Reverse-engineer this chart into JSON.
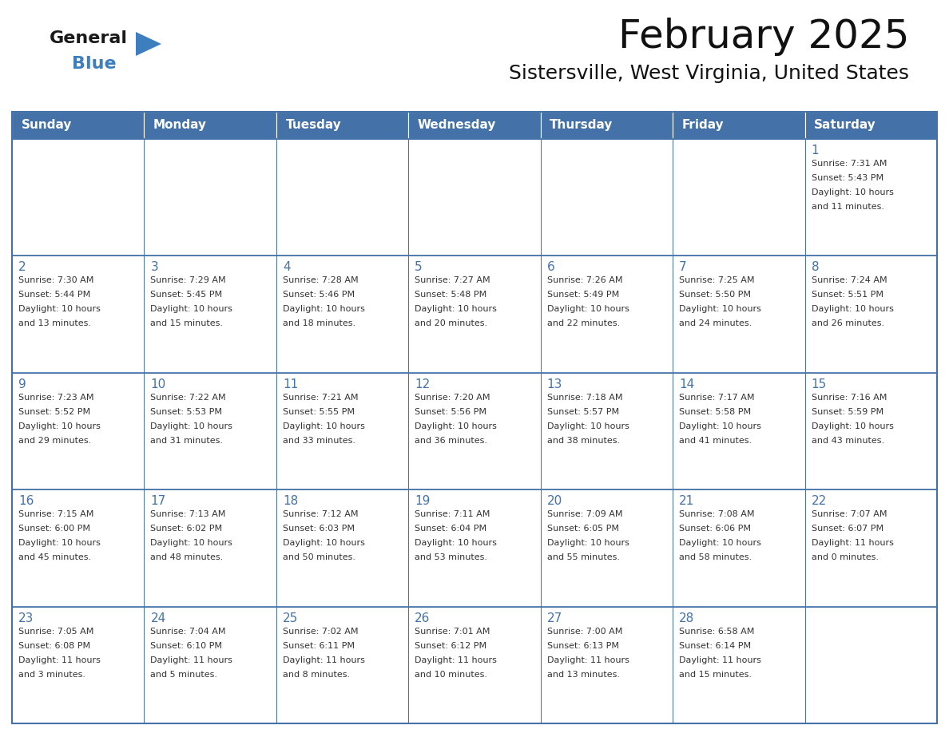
{
  "title": "February 2025",
  "subtitle": "Sistersville, West Virginia, United States",
  "header_color": "#4472a8",
  "header_text_color": "#ffffff",
  "border_color": "#4472a8",
  "text_color": "#333333",
  "day_number_color": "#4472a8",
  "days_of_week": [
    "Sunday",
    "Monday",
    "Tuesday",
    "Wednesday",
    "Thursday",
    "Friday",
    "Saturday"
  ],
  "weeks": [
    [
      {
        "day": "",
        "info": ""
      },
      {
        "day": "",
        "info": ""
      },
      {
        "day": "",
        "info": ""
      },
      {
        "day": "",
        "info": ""
      },
      {
        "day": "",
        "info": ""
      },
      {
        "day": "",
        "info": ""
      },
      {
        "day": "1",
        "info": "Sunrise: 7:31 AM\nSunset: 5:43 PM\nDaylight: 10 hours\nand 11 minutes."
      }
    ],
    [
      {
        "day": "2",
        "info": "Sunrise: 7:30 AM\nSunset: 5:44 PM\nDaylight: 10 hours\nand 13 minutes."
      },
      {
        "day": "3",
        "info": "Sunrise: 7:29 AM\nSunset: 5:45 PM\nDaylight: 10 hours\nand 15 minutes."
      },
      {
        "day": "4",
        "info": "Sunrise: 7:28 AM\nSunset: 5:46 PM\nDaylight: 10 hours\nand 18 minutes."
      },
      {
        "day": "5",
        "info": "Sunrise: 7:27 AM\nSunset: 5:48 PM\nDaylight: 10 hours\nand 20 minutes."
      },
      {
        "day": "6",
        "info": "Sunrise: 7:26 AM\nSunset: 5:49 PM\nDaylight: 10 hours\nand 22 minutes."
      },
      {
        "day": "7",
        "info": "Sunrise: 7:25 AM\nSunset: 5:50 PM\nDaylight: 10 hours\nand 24 minutes."
      },
      {
        "day": "8",
        "info": "Sunrise: 7:24 AM\nSunset: 5:51 PM\nDaylight: 10 hours\nand 26 minutes."
      }
    ],
    [
      {
        "day": "9",
        "info": "Sunrise: 7:23 AM\nSunset: 5:52 PM\nDaylight: 10 hours\nand 29 minutes."
      },
      {
        "day": "10",
        "info": "Sunrise: 7:22 AM\nSunset: 5:53 PM\nDaylight: 10 hours\nand 31 minutes."
      },
      {
        "day": "11",
        "info": "Sunrise: 7:21 AM\nSunset: 5:55 PM\nDaylight: 10 hours\nand 33 minutes."
      },
      {
        "day": "12",
        "info": "Sunrise: 7:20 AM\nSunset: 5:56 PM\nDaylight: 10 hours\nand 36 minutes."
      },
      {
        "day": "13",
        "info": "Sunrise: 7:18 AM\nSunset: 5:57 PM\nDaylight: 10 hours\nand 38 minutes."
      },
      {
        "day": "14",
        "info": "Sunrise: 7:17 AM\nSunset: 5:58 PM\nDaylight: 10 hours\nand 41 minutes."
      },
      {
        "day": "15",
        "info": "Sunrise: 7:16 AM\nSunset: 5:59 PM\nDaylight: 10 hours\nand 43 minutes."
      }
    ],
    [
      {
        "day": "16",
        "info": "Sunrise: 7:15 AM\nSunset: 6:00 PM\nDaylight: 10 hours\nand 45 minutes."
      },
      {
        "day": "17",
        "info": "Sunrise: 7:13 AM\nSunset: 6:02 PM\nDaylight: 10 hours\nand 48 minutes."
      },
      {
        "day": "18",
        "info": "Sunrise: 7:12 AM\nSunset: 6:03 PM\nDaylight: 10 hours\nand 50 minutes."
      },
      {
        "day": "19",
        "info": "Sunrise: 7:11 AM\nSunset: 6:04 PM\nDaylight: 10 hours\nand 53 minutes."
      },
      {
        "day": "20",
        "info": "Sunrise: 7:09 AM\nSunset: 6:05 PM\nDaylight: 10 hours\nand 55 minutes."
      },
      {
        "day": "21",
        "info": "Sunrise: 7:08 AM\nSunset: 6:06 PM\nDaylight: 10 hours\nand 58 minutes."
      },
      {
        "day": "22",
        "info": "Sunrise: 7:07 AM\nSunset: 6:07 PM\nDaylight: 11 hours\nand 0 minutes."
      }
    ],
    [
      {
        "day": "23",
        "info": "Sunrise: 7:05 AM\nSunset: 6:08 PM\nDaylight: 11 hours\nand 3 minutes."
      },
      {
        "day": "24",
        "info": "Sunrise: 7:04 AM\nSunset: 6:10 PM\nDaylight: 11 hours\nand 5 minutes."
      },
      {
        "day": "25",
        "info": "Sunrise: 7:02 AM\nSunset: 6:11 PM\nDaylight: 11 hours\nand 8 minutes."
      },
      {
        "day": "26",
        "info": "Sunrise: 7:01 AM\nSunset: 6:12 PM\nDaylight: 11 hours\nand 10 minutes."
      },
      {
        "day": "27",
        "info": "Sunrise: 7:00 AM\nSunset: 6:13 PM\nDaylight: 11 hours\nand 13 minutes."
      },
      {
        "day": "28",
        "info": "Sunrise: 6:58 AM\nSunset: 6:14 PM\nDaylight: 11 hours\nand 15 minutes."
      },
      {
        "day": "",
        "info": ""
      }
    ]
  ],
  "logo_triangle_color": "#3d7ebf",
  "logo_general_color": "#1a1a1a",
  "logo_blue_color": "#3d7ebf",
  "title_fontsize": 36,
  "subtitle_fontsize": 18,
  "header_fontsize": 11,
  "day_num_fontsize": 11,
  "info_fontsize": 8
}
